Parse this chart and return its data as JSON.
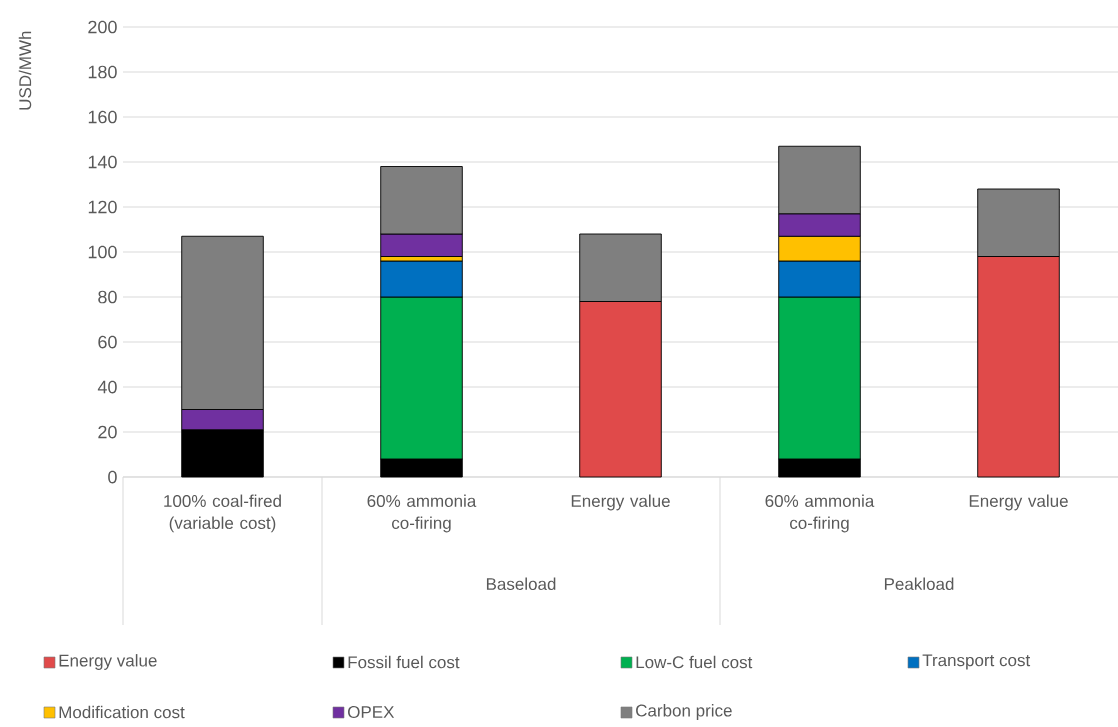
{
  "chart_data": {
    "type": "bar",
    "stacked": true,
    "categories": [
      "100% coal-fired (variable cost)",
      "60% ammonia co-firing",
      "Energy value",
      "60% ammonia co-firing",
      "Energy value"
    ],
    "annotations": [
      "Baseload",
      "Peakload"
    ],
    "ylabel": "USD/MWh",
    "ylim": [
      0,
      200
    ],
    "yticks": [
      0,
      20,
      40,
      60,
      80,
      100,
      120,
      140,
      160,
      180,
      200
    ],
    "grid": "y",
    "legend": "bottom",
    "series": [
      {
        "name": "Energy value",
        "color": "#e04a4a",
        "values": [
          null,
          null,
          78,
          null,
          98
        ]
      },
      {
        "name": "Fossil fuel cost",
        "color": "#000000",
        "values": [
          21,
          8,
          null,
          8,
          null
        ]
      },
      {
        "name": "Low-C fuel cost",
        "color": "#00b050",
        "values": [
          null,
          72,
          null,
          72,
          null
        ]
      },
      {
        "name": "Transport cost",
        "color": "#0070c0",
        "values": [
          null,
          16,
          null,
          16,
          null
        ]
      },
      {
        "name": "Modification cost",
        "color": "#ffc000",
        "values": [
          null,
          2,
          null,
          11,
          null
        ]
      },
      {
        "name": "OPEX",
        "color": "#7030a0",
        "values": [
          9,
          10,
          null,
          10,
          null
        ]
      },
      {
        "name": "Carbon price",
        "color": "#7f7f7f",
        "values": [
          77,
          30,
          30,
          30,
          30
        ]
      }
    ]
  }
}
